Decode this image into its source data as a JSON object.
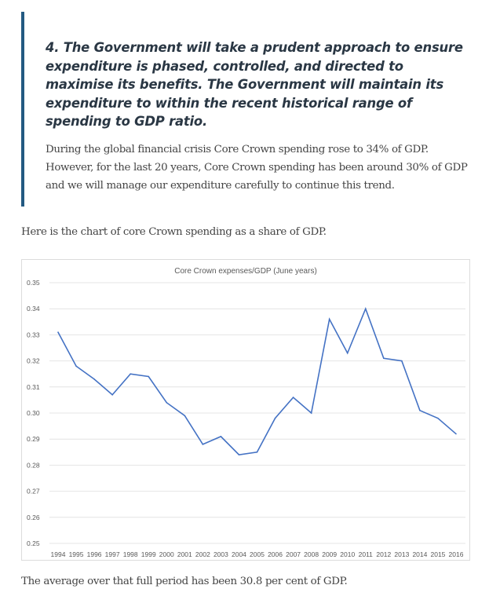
{
  "quote": {
    "heading": "4. The Government will take a prudent approach to ensure expenditure is phased, controlled, and directed to maximise its benefits. The Government will maintain its expenditure to within the recent historical range of spending to GDP ratio.",
    "body": "During the global financial crisis Core Crown spending rose to 34% of GDP. However, for the last 20 years, Core Crown spending has been around 30% of GDP and we will manage our expenditure carefully to continue this trend."
  },
  "intro": "Here is the chart of core Crown spending as a share of GDP.",
  "outro": "The average over that full period has been 30.8 per cent of GDP.",
  "colors": {
    "accent_bar": "#235a82",
    "series": "#4472c4"
  },
  "chart_data": {
    "type": "line",
    "title": "Core Crown expenses/GDP  (June years)",
    "xlabel": "",
    "ylabel": "",
    "ylim": [
      0.25,
      0.35
    ],
    "yticks": [
      "0.35",
      "0.34",
      "0.33",
      "0.32",
      "0.31",
      "0.30",
      "0.29",
      "0.28",
      "0.27",
      "0.26",
      "0.25"
    ],
    "grid": true,
    "legend": "none",
    "categories": [
      "1994",
      "1995",
      "1996",
      "1997",
      "1998",
      "1999",
      "2000",
      "2001",
      "2002",
      "2003",
      "2004",
      "2005",
      "2006",
      "2007",
      "2008",
      "2009",
      "2010",
      "2011",
      "2012",
      "2013",
      "2014",
      "2015",
      "2016"
    ],
    "series": [
      {
        "name": "Core Crown expenses/GDP",
        "values": [
          0.331,
          0.318,
          0.313,
          0.307,
          0.315,
          0.314,
          0.304,
          0.299,
          0.288,
          0.291,
          0.284,
          0.285,
          0.298,
          0.306,
          0.3,
          0.336,
          0.323,
          0.34,
          0.321,
          0.32,
          0.301,
          0.298,
          0.292
        ]
      }
    ]
  }
}
